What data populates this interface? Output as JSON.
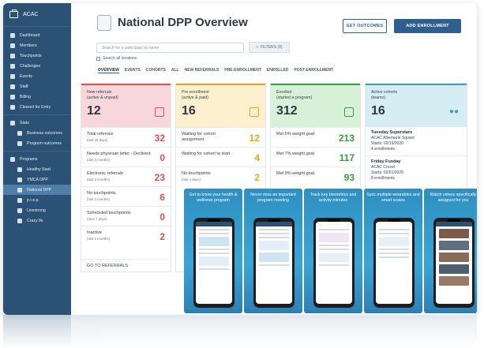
{
  "app": {
    "name": "ACAC"
  },
  "sidebar": {
    "items": [
      {
        "label": "Dashboard"
      },
      {
        "label": "Members"
      },
      {
        "label": "Touchpoints"
      },
      {
        "label": "Challenges"
      },
      {
        "label": "Events"
      },
      {
        "label": "Staff"
      },
      {
        "label": "Billing"
      },
      {
        "label": "Cleared for Entry"
      }
    ],
    "stats": {
      "label": "Stats",
      "items": [
        {
          "label": "Business outcomes"
        },
        {
          "label": "Program outcomes"
        }
      ]
    },
    "programs": {
      "label": "Programs",
      "items": [
        {
          "label": "Healthy Start"
        },
        {
          "label": "YMCA DPP"
        },
        {
          "label": "National DPP"
        },
        {
          "label": "p.r.e.p."
        },
        {
          "label": "Livestrong"
        },
        {
          "label": "Crazy 8s"
        }
      ]
    }
  },
  "header": {
    "title": "National DPP Overview",
    "get_outcomes": "GET OUTCOMES",
    "add_enrollment": "ADD ENROLLMENT",
    "search_placeholder": "Search for a participant by name",
    "filters": "FILTERS (0)",
    "search_all": "Search all locations",
    "tabs": [
      "OVERVIEW",
      "EVENTS",
      "COHORTS",
      "ALL",
      "NEW REFERRALS",
      "PRE-ENROLLMENT",
      "ENROLLED",
      "POST-ENROLLMENT"
    ]
  },
  "cards": {
    "new_referrals": {
      "title": "New referrals",
      "sub": "(active & unpaid)",
      "count": "12",
      "color": "#f8d7dc",
      "accent": "#d9534f",
      "rows": [
        {
          "label": "Total referrals",
          "sub": "(last 30 days)",
          "value": "32"
        },
        {
          "label": "Needs physician letter - Declined",
          "sub": "(last 3 months)",
          "value": "0"
        },
        {
          "label": "Electronic referrals",
          "sub": "(last 3 months)",
          "value": "23"
        },
        {
          "label": "No touchpoints",
          "sub": "(last 3 months)",
          "value": "6"
        },
        {
          "label": "Scheduled touchpoints",
          "sub": "(next 7 days)",
          "value": "0"
        },
        {
          "label": "Inactive",
          "sub": "(last 3 months)",
          "value": "2"
        }
      ],
      "footer": "GO TO REFERRALS"
    },
    "pre_enrollment": {
      "title": "Pre-enrollment",
      "sub": "(active & paid)",
      "count": "16",
      "color": "#fdf0cf",
      "accent": "#e0a82b",
      "rows": [
        {
          "label": "Waiting for cohort assignment",
          "sub": "",
          "value": "12"
        },
        {
          "label": "Waiting for cohort to start",
          "sub": "",
          "value": "4"
        },
        {
          "label": "No touchpoints",
          "sub": "(last 4 days)",
          "value": "2"
        }
      ]
    },
    "enrolled": {
      "title": "Enrolled",
      "sub": "(started a program)",
      "count": "312",
      "color": "#d8f2d9",
      "accent": "#3c9b43",
      "rows": [
        {
          "label": "Met 5% weight goal",
          "sub": "",
          "value": "213"
        },
        {
          "label": "Met 7% weight goal",
          "sub": "",
          "value": "117"
        },
        {
          "label": "Met 9% weight goal",
          "sub": "",
          "value": "93"
        }
      ]
    },
    "active_cohorts": {
      "title": "Active cohorts",
      "sub": "(teams)",
      "count": "16",
      "color": "#d6eef3",
      "accent": "#3d9fb3",
      "cohorts": [
        {
          "name": "Tuesday Superstars",
          "place": "ACAC Albemarle Square",
          "starts": "Starts: 02/19/2020",
          "enroll": "4 enrollments"
        },
        {
          "name": "Friday Funday",
          "place": "ACAC Crozet",
          "starts": "Starts: 02/01/2020",
          "enroll": "8 enrollments"
        }
      ]
    }
  },
  "promo": [
    {
      "text": "Get to know your health & wellness program"
    },
    {
      "text": "Never miss an important program meeting"
    },
    {
      "text": "Track key biometrics and activity minutes"
    },
    {
      "text": "Sync multiple wearables and smart scales"
    },
    {
      "text": "Watch videos specifically assigned for you"
    }
  ],
  "colors": {
    "sidebar": "#2b5174",
    "primary": "#2d5f8f",
    "promo": "#3aa6d6"
  }
}
